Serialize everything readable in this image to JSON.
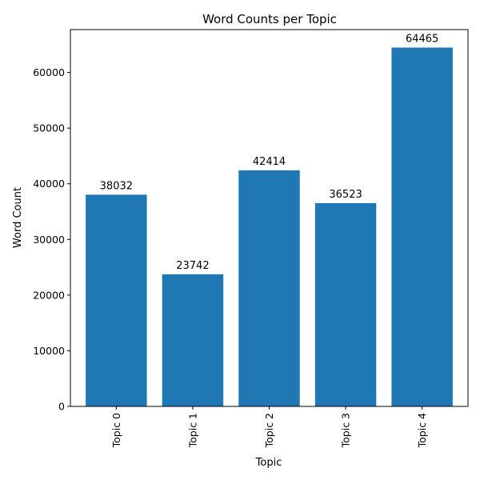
{
  "chart_data": {
    "type": "bar",
    "title": "Word Counts per Topic",
    "xlabel": "Topic",
    "ylabel": "Word Count",
    "categories": [
      "Topic 0",
      "Topic 1",
      "Topic 2",
      "Topic 3",
      "Topic 4"
    ],
    "values": [
      38032,
      23742,
      42414,
      36523,
      64465
    ],
    "ylim": [
      0,
      67700
    ],
    "yticks": [
      0,
      10000,
      20000,
      30000,
      40000,
      50000,
      60000
    ],
    "grid": false,
    "legend": "none",
    "x_tick_rotation": "vertical",
    "bar_color": "#1f77b4"
  }
}
